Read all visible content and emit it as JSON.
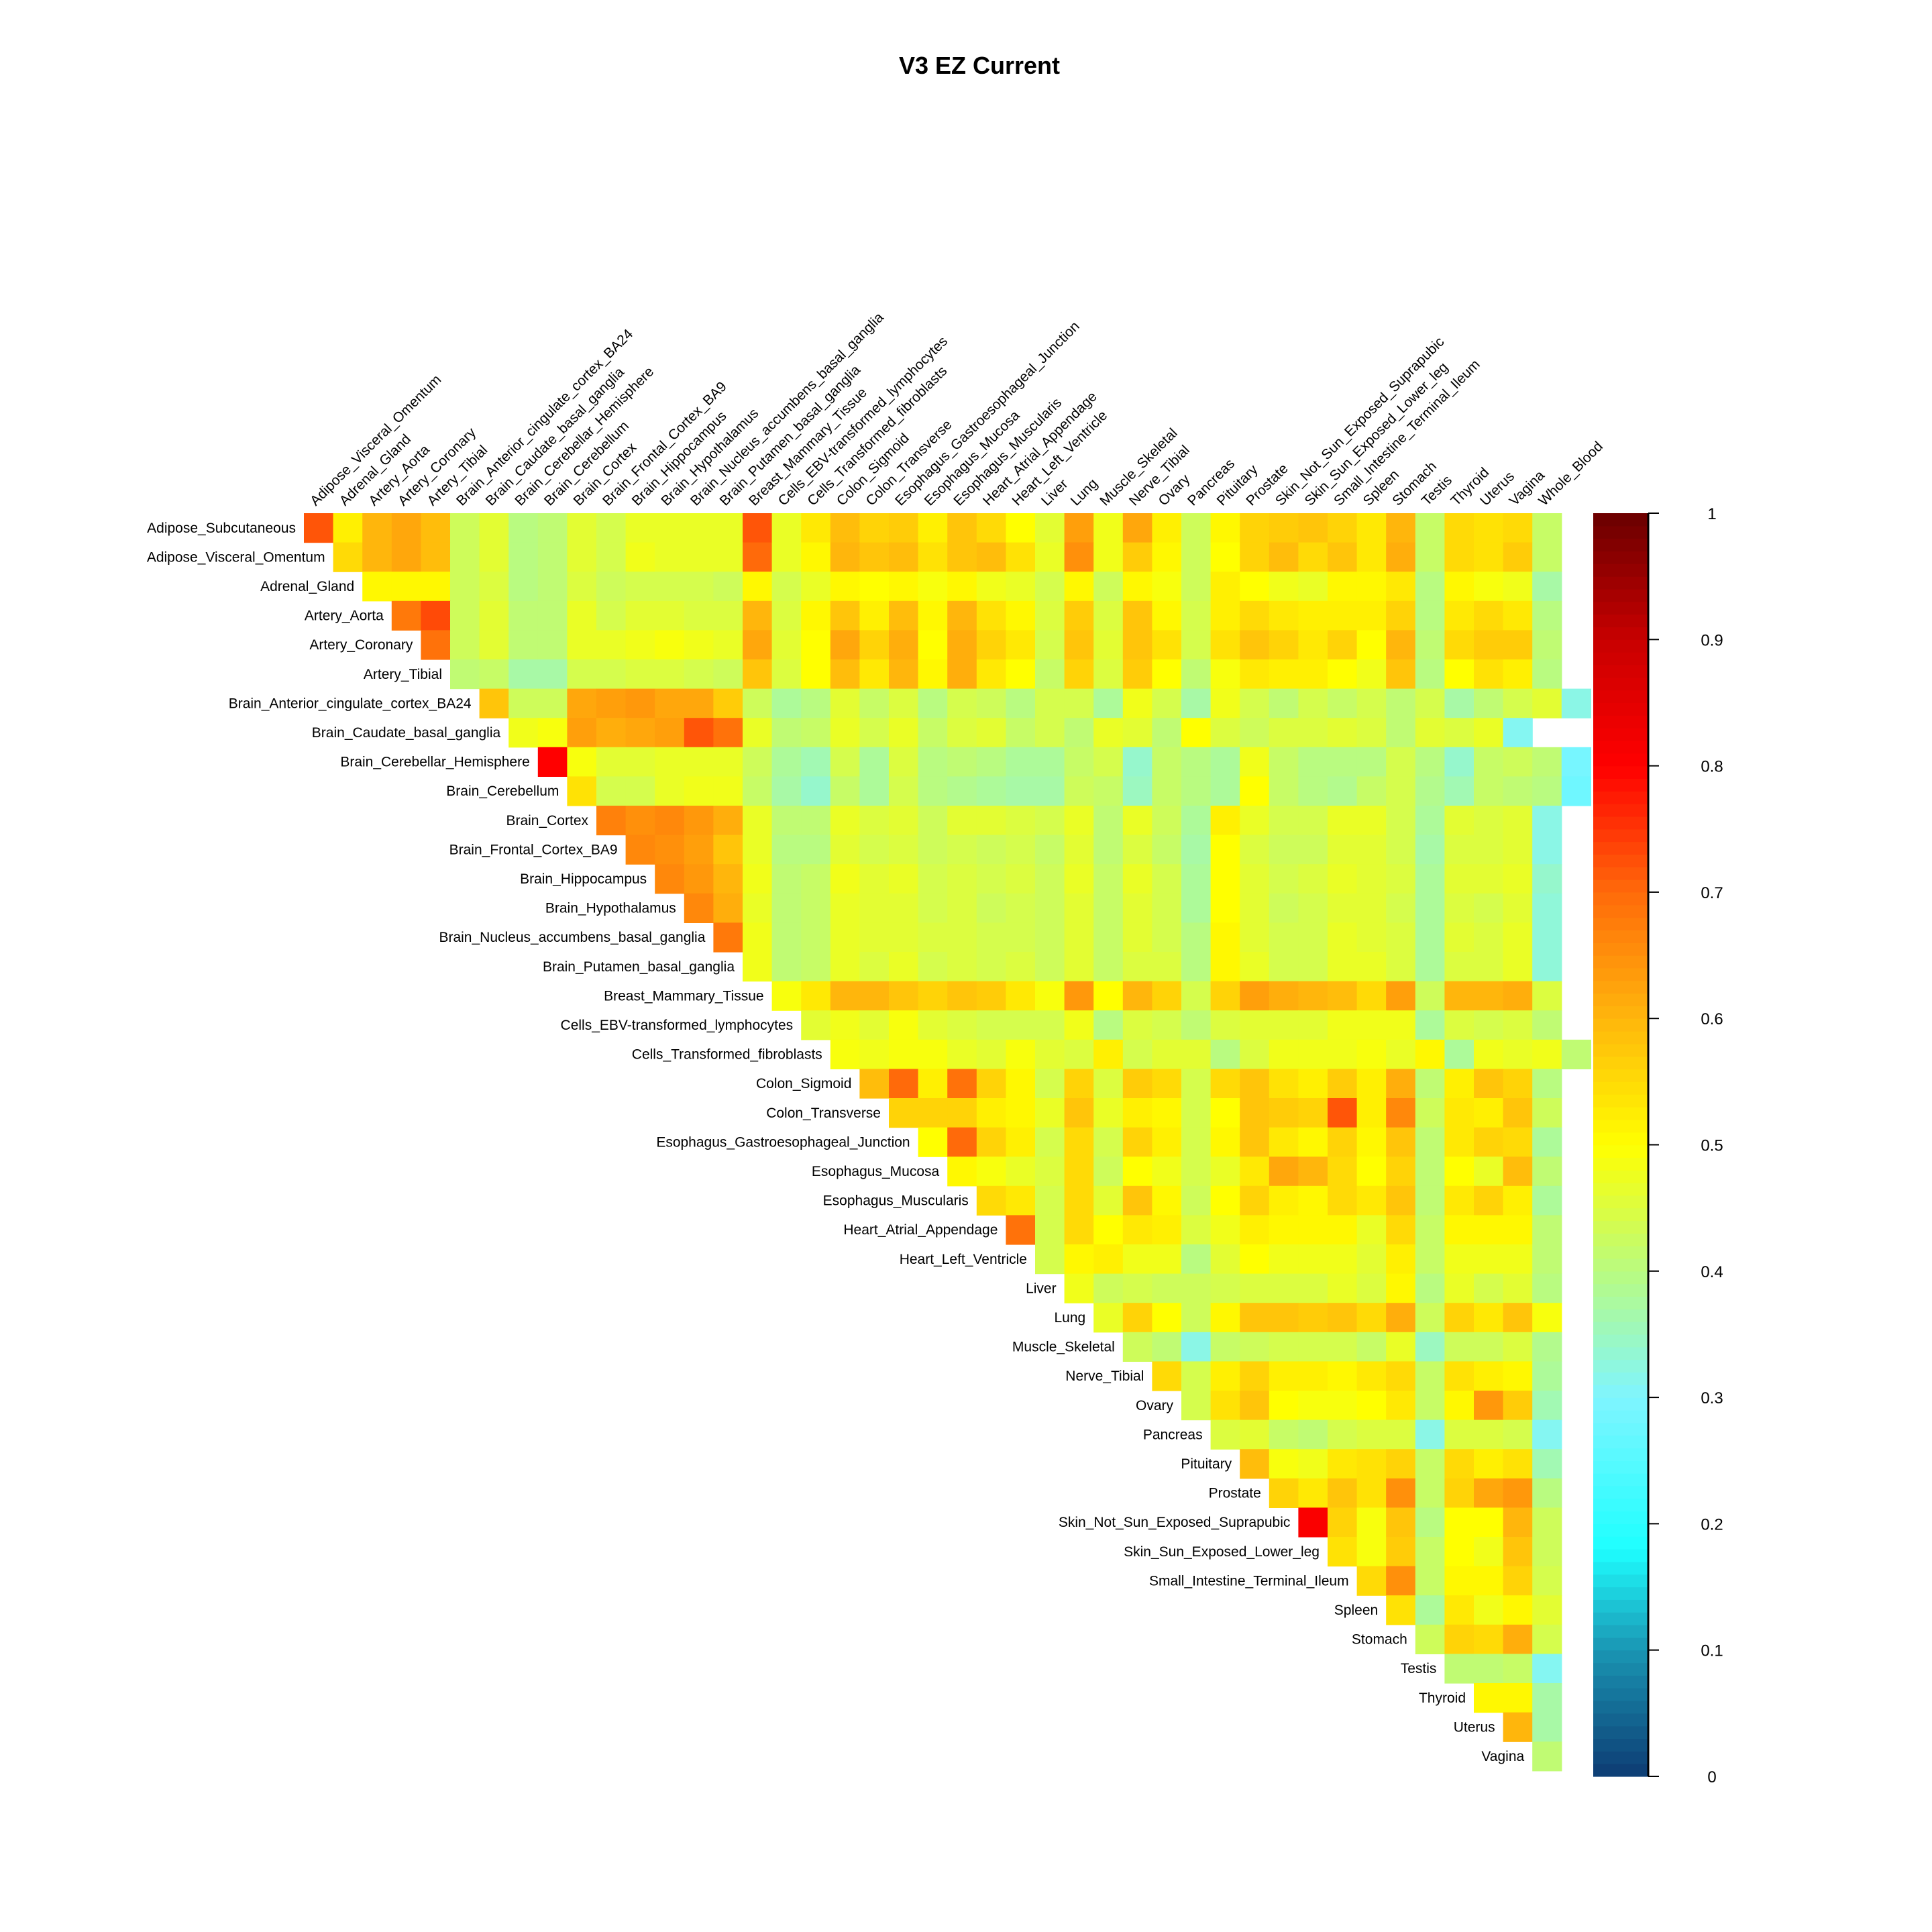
{
  "chart_data": {
    "type": "heatmap",
    "title": "V3 EZ Current",
    "xlabel": "",
    "ylabel": "",
    "layout": "upper-triangular",
    "row_labels": [
      "Adipose_Subcutaneous",
      "Adipose_Visceral_Omentum",
      "Adrenal_Gland",
      "Artery_Aorta",
      "Artery_Coronary",
      "Artery_Tibial",
      "Brain_Anterior_cingulate_cortex_BA24",
      "Brain_Caudate_basal_ganglia",
      "Brain_Cerebellar_Hemisphere",
      "Brain_Cerebellum",
      "Brain_Cortex",
      "Brain_Frontal_Cortex_BA9",
      "Brain_Hippocampus",
      "Brain_Hypothalamus",
      "Brain_Nucleus_accumbens_basal_ganglia",
      "Brain_Putamen_basal_ganglia",
      "Breast_Mammary_Tissue",
      "Cells_EBV-transformed_lymphocytes",
      "Cells_Transformed_fibroblasts",
      "Colon_Sigmoid",
      "Colon_Transverse",
      "Esophagus_Gastroesophageal_Junction",
      "Esophagus_Mucosa",
      "Esophagus_Muscularis",
      "Heart_Atrial_Appendage",
      "Heart_Left_Ventricle",
      "Liver",
      "Lung",
      "Muscle_Skeletal",
      "Nerve_Tibial",
      "Ovary",
      "Pancreas",
      "Pituitary",
      "Prostate",
      "Skin_Not_Sun_Exposed_Suprapubic",
      "Skin_Sun_Exposed_Lower_leg",
      "Small_Intestine_Terminal_Ileum",
      "Spleen",
      "Stomach",
      "Testis",
      "Thyroid",
      "Uterus",
      "Vagina"
    ],
    "col_labels": [
      "Adipose_Visceral_Omentum",
      "Adrenal_Gland",
      "Artery_Aorta",
      "Artery_Coronary",
      "Artery_Tibial",
      "Brain_Anterior_cingulate_cortex_BA24",
      "Brain_Caudate_basal_ganglia",
      "Brain_Cerebellar_Hemisphere",
      "Brain_Cerebellum",
      "Brain_Cortex",
      "Brain_Frontal_Cortex_BA9",
      "Brain_Hippocampus",
      "Brain_Hypothalamus",
      "Brain_Nucleus_accumbens_basal_ganglia",
      "Brain_Putamen_basal_ganglia",
      "Breast_Mammary_Tissue",
      "Cells_EBV-transformed_lymphocytes",
      "Cells_Transformed_fibroblasts",
      "Colon_Sigmoid",
      "Colon_Transverse",
      "Esophagus_Gastroesophageal_Junction",
      "Esophagus_Mucosa",
      "Esophagus_Muscularis",
      "Heart_Atrial_Appendage",
      "Heart_Left_Ventricle",
      "Liver",
      "Lung",
      "Muscle_Skeletal",
      "Nerve_Tibial",
      "Ovary",
      "Pancreas",
      "Pituitary",
      "Prostate",
      "Skin_Not_Sun_Exposed_Suprapubic",
      "Skin_Sun_Exposed_Lower_leg",
      "Small_Intestine_Terminal_Ileum",
      "Spleen",
      "Stomach",
      "Testis",
      "Thyroid",
      "Uterus",
      "Vagina",
      "Whole_Blood"
    ],
    "rows_upper": [
      [
        0.72,
        0.52,
        0.6,
        0.62,
        0.59,
        0.43,
        0.46,
        0.4,
        0.41,
        0.46,
        0.44,
        0.47,
        0.47,
        0.47,
        0.47,
        0.72,
        0.47,
        0.53,
        0.59,
        0.56,
        0.57,
        0.52,
        0.58,
        0.55,
        0.5,
        0.46,
        0.63,
        0.48,
        0.62,
        0.52,
        0.43,
        0.51,
        0.56,
        0.57,
        0.58,
        0.56,
        0.53,
        0.6,
        0.42,
        0.55,
        0.54,
        0.55,
        0.42
      ],
      [
        0.55,
        0.6,
        0.62,
        0.59,
        0.43,
        0.46,
        0.4,
        0.41,
        0.46,
        0.44,
        0.48,
        0.47,
        0.47,
        0.47,
        0.7,
        0.47,
        0.51,
        0.6,
        0.58,
        0.59,
        0.54,
        0.58,
        0.59,
        0.54,
        0.47,
        0.65,
        0.48,
        0.57,
        0.51,
        0.43,
        0.5,
        0.56,
        0.59,
        0.55,
        0.58,
        0.53,
        0.61,
        0.42,
        0.55,
        0.54,
        0.57,
        0.42
      ],
      [
        0.51,
        0.51,
        0.51,
        0.43,
        0.45,
        0.4,
        0.41,
        0.45,
        0.43,
        0.44,
        0.44,
        0.44,
        0.43,
        0.51,
        0.44,
        0.47,
        0.51,
        0.5,
        0.51,
        0.49,
        0.51,
        0.48,
        0.47,
        0.44,
        0.51,
        0.43,
        0.51,
        0.49,
        0.43,
        0.52,
        0.5,
        0.48,
        0.47,
        0.51,
        0.51,
        0.53,
        0.4,
        0.51,
        0.49,
        0.48,
        0.37
      ],
      [
        0.68,
        0.73,
        0.43,
        0.46,
        0.41,
        0.41,
        0.47,
        0.44,
        0.46,
        0.46,
        0.45,
        0.45,
        0.6,
        0.45,
        0.51,
        0.58,
        0.52,
        0.59,
        0.51,
        0.6,
        0.54,
        0.51,
        0.45,
        0.57,
        0.45,
        0.58,
        0.51,
        0.44,
        0.52,
        0.55,
        0.53,
        0.52,
        0.52,
        0.52,
        0.56,
        0.4,
        0.53,
        0.55,
        0.53,
        0.4
      ],
      [
        0.69,
        0.43,
        0.46,
        0.41,
        0.41,
        0.47,
        0.47,
        0.48,
        0.49,
        0.48,
        0.47,
        0.62,
        0.46,
        0.5,
        0.62,
        0.56,
        0.61,
        0.5,
        0.61,
        0.56,
        0.53,
        0.44,
        0.58,
        0.46,
        0.58,
        0.54,
        0.44,
        0.54,
        0.58,
        0.56,
        0.53,
        0.56,
        0.5,
        0.6,
        0.41,
        0.55,
        0.57,
        0.57,
        0.41
      ],
      [
        0.41,
        0.42,
        0.37,
        0.37,
        0.44,
        0.44,
        0.45,
        0.45,
        0.44,
        0.43,
        0.58,
        0.45,
        0.5,
        0.59,
        0.53,
        0.6,
        0.51,
        0.61,
        0.53,
        0.5,
        0.42,
        0.56,
        0.45,
        0.57,
        0.5,
        0.41,
        0.49,
        0.53,
        0.52,
        0.52,
        0.5,
        0.48,
        0.58,
        0.4,
        0.5,
        0.54,
        0.52,
        0.4
      ],
      [
        0.58,
        0.43,
        0.43,
        0.62,
        0.63,
        0.64,
        0.62,
        0.62,
        0.57,
        0.43,
        0.38,
        0.4,
        0.46,
        0.42,
        0.45,
        0.4,
        0.44,
        0.43,
        0.4,
        0.44,
        0.44,
        0.38,
        0.48,
        0.44,
        0.37,
        0.48,
        0.44,
        0.41,
        0.44,
        0.42,
        0.44,
        0.41,
        0.44,
        0.37,
        0.41,
        0.44,
        0.46,
        0.32
      ],
      [
        0.48,
        0.49,
        0.63,
        0.61,
        0.62,
        0.63,
        0.72,
        0.69,
        0.47,
        0.41,
        0.42,
        0.47,
        0.44,
        0.47,
        0.42,
        0.45,
        0.46,
        0.42,
        0.44,
        0.41,
        0.47,
        0.46,
        0.41,
        0.5,
        0.45,
        0.43,
        0.45,
        0.45,
        0.46,
        0.45,
        0.41,
        0.46,
        0.45,
        0.47,
        0.31
      ],
      [
        0.8,
        0.49,
        0.46,
        0.46,
        0.47,
        0.47,
        0.47,
        0.43,
        0.38,
        0.36,
        0.44,
        0.38,
        0.45,
        0.4,
        0.41,
        0.4,
        0.38,
        0.38,
        0.42,
        0.44,
        0.34,
        0.42,
        0.4,
        0.38,
        0.48,
        0.42,
        0.4,
        0.4,
        0.4,
        0.44,
        0.4,
        0.34,
        0.42,
        0.43,
        0.41,
        0.29
      ],
      [
        0.54,
        0.44,
        0.44,
        0.47,
        0.48,
        0.48,
        0.42,
        0.37,
        0.34,
        0.42,
        0.38,
        0.44,
        0.4,
        0.39,
        0.38,
        0.37,
        0.37,
        0.43,
        0.42,
        0.35,
        0.42,
        0.4,
        0.38,
        0.5,
        0.42,
        0.4,
        0.39,
        0.42,
        0.44,
        0.39,
        0.36,
        0.42,
        0.41,
        0.4,
        0.28
      ],
      [
        0.67,
        0.65,
        0.66,
        0.64,
        0.61,
        0.47,
        0.41,
        0.41,
        0.47,
        0.45,
        0.46,
        0.43,
        0.46,
        0.46,
        0.45,
        0.44,
        0.47,
        0.41,
        0.47,
        0.43,
        0.38,
        0.52,
        0.47,
        0.44,
        0.44,
        0.47,
        0.47,
        0.44,
        0.38,
        0.46,
        0.45,
        0.46,
        0.32
      ],
      [
        0.66,
        0.65,
        0.63,
        0.58,
        0.47,
        0.4,
        0.4,
        0.46,
        0.44,
        0.45,
        0.43,
        0.44,
        0.43,
        0.44,
        0.42,
        0.46,
        0.41,
        0.45,
        0.42,
        0.37,
        0.5,
        0.45,
        0.43,
        0.43,
        0.46,
        0.46,
        0.44,
        0.37,
        0.45,
        0.45,
        0.46,
        0.32
      ],
      [
        0.66,
        0.64,
        0.6,
        0.48,
        0.41,
        0.42,
        0.48,
        0.46,
        0.47,
        0.44,
        0.45,
        0.44,
        0.45,
        0.43,
        0.47,
        0.42,
        0.47,
        0.44,
        0.38,
        0.5,
        0.46,
        0.44,
        0.45,
        0.47,
        0.46,
        0.45,
        0.38,
        0.46,
        0.46,
        0.47,
        0.34
      ],
      [
        0.66,
        0.61,
        0.47,
        0.41,
        0.42,
        0.47,
        0.46,
        0.46,
        0.44,
        0.45,
        0.43,
        0.44,
        0.43,
        0.46,
        0.42,
        0.46,
        0.44,
        0.38,
        0.5,
        0.46,
        0.43,
        0.44,
        0.46,
        0.46,
        0.44,
        0.38,
        0.45,
        0.44,
        0.46,
        0.33
      ],
      [
        0.68,
        0.48,
        0.41,
        0.42,
        0.47,
        0.46,
        0.46,
        0.45,
        0.45,
        0.44,
        0.44,
        0.43,
        0.46,
        0.42,
        0.46,
        0.44,
        0.4,
        0.51,
        0.46,
        0.44,
        0.44,
        0.47,
        0.46,
        0.45,
        0.38,
        0.46,
        0.45,
        0.47,
        0.33
      ],
      [
        0.48,
        0.41,
        0.42,
        0.47,
        0.45,
        0.47,
        0.44,
        0.45,
        0.44,
        0.45,
        0.43,
        0.46,
        0.42,
        0.45,
        0.45,
        0.4,
        0.51,
        0.47,
        0.44,
        0.44,
        0.47,
        0.47,
        0.45,
        0.38,
        0.45,
        0.45,
        0.47,
        0.33
      ],
      [
        0.49,
        0.53,
        0.6,
        0.6,
        0.58,
        0.56,
        0.58,
        0.57,
        0.53,
        0.49,
        0.64,
        0.5,
        0.6,
        0.56,
        0.44,
        0.56,
        0.63,
        0.61,
        0.6,
        0.59,
        0.55,
        0.63,
        0.43,
        0.6,
        0.6,
        0.61,
        0.45
      ],
      [
        0.46,
        0.48,
        0.46,
        0.49,
        0.46,
        0.45,
        0.44,
        0.44,
        0.44,
        0.48,
        0.4,
        0.45,
        0.44,
        0.41,
        0.45,
        0.46,
        0.46,
        0.46,
        0.48,
        0.48,
        0.48,
        0.38,
        0.45,
        0.44,
        0.45,
        0.41
      ],
      [
        0.49,
        0.48,
        0.49,
        0.49,
        0.47,
        0.46,
        0.49,
        0.46,
        0.45,
        0.52,
        0.44,
        0.46,
        0.46,
        0.4,
        0.45,
        0.48,
        0.48,
        0.48,
        0.49,
        0.47,
        0.51,
        0.38,
        0.48,
        0.47,
        0.48,
        0.41
      ],
      [
        0.59,
        0.7,
        0.52,
        0.69,
        0.56,
        0.51,
        0.44,
        0.56,
        0.45,
        0.57,
        0.55,
        0.44,
        0.55,
        0.58,
        0.54,
        0.52,
        0.57,
        0.52,
        0.61,
        0.41,
        0.52,
        0.58,
        0.56,
        0.4
      ],
      [
        0.56,
        0.56,
        0.56,
        0.52,
        0.51,
        0.47,
        0.58,
        0.47,
        0.52,
        0.51,
        0.44,
        0.5,
        0.58,
        0.57,
        0.56,
        0.72,
        0.52,
        0.66,
        0.43,
        0.53,
        0.52,
        0.58,
        0.43
      ],
      [
        0.5,
        0.7,
        0.56,
        0.52,
        0.44,
        0.55,
        0.44,
        0.56,
        0.52,
        0.44,
        0.51,
        0.58,
        0.53,
        0.51,
        0.56,
        0.51,
        0.58,
        0.41,
        0.53,
        0.56,
        0.55,
        0.38
      ],
      [
        0.51,
        0.49,
        0.47,
        0.45,
        0.55,
        0.43,
        0.5,
        0.48,
        0.44,
        0.47,
        0.53,
        0.62,
        0.6,
        0.55,
        0.5,
        0.56,
        0.41,
        0.5,
        0.47,
        0.59,
        0.41
      ],
      [
        0.55,
        0.53,
        0.44,
        0.55,
        0.46,
        0.58,
        0.51,
        0.43,
        0.5,
        0.56,
        0.52,
        0.51,
        0.55,
        0.53,
        0.58,
        0.41,
        0.53,
        0.56,
        0.52,
        0.38
      ],
      [
        0.69,
        0.44,
        0.55,
        0.5,
        0.53,
        0.52,
        0.45,
        0.48,
        0.52,
        0.51,
        0.51,
        0.51,
        0.47,
        0.55,
        0.42,
        0.51,
        0.51,
        0.51,
        0.41
      ],
      [
        0.44,
        0.51,
        0.52,
        0.48,
        0.48,
        0.4,
        0.46,
        0.5,
        0.48,
        0.48,
        0.48,
        0.46,
        0.52,
        0.42,
        0.48,
        0.48,
        0.48,
        0.41
      ],
      [
        0.48,
        0.43,
        0.44,
        0.43,
        0.43,
        0.44,
        0.45,
        0.45,
        0.45,
        0.47,
        0.45,
        0.51,
        0.4,
        0.47,
        0.44,
        0.46,
        0.4
      ],
      [
        0.47,
        0.56,
        0.5,
        0.43,
        0.51,
        0.58,
        0.58,
        0.57,
        0.58,
        0.55,
        0.61,
        0.43,
        0.56,
        0.53,
        0.58,
        0.49
      ],
      [
        0.43,
        0.41,
        0.32,
        0.42,
        0.43,
        0.44,
        0.44,
        0.44,
        0.42,
        0.47,
        0.35,
        0.43,
        0.43,
        0.45,
        0.39
      ],
      [
        0.55,
        0.44,
        0.52,
        0.56,
        0.52,
        0.52,
        0.51,
        0.53,
        0.55,
        0.42,
        0.54,
        0.52,
        0.51,
        0.38
      ],
      [
        0.44,
        0.54,
        0.58,
        0.5,
        0.49,
        0.49,
        0.5,
        0.53,
        0.42,
        0.51,
        0.64,
        0.57,
        0.36
      ],
      [
        0.45,
        0.46,
        0.42,
        0.41,
        0.44,
        0.45,
        0.45,
        0.32,
        0.45,
        0.45,
        0.44,
        0.31
      ],
      [
        0.59,
        0.49,
        0.48,
        0.53,
        0.54,
        0.56,
        0.42,
        0.55,
        0.52,
        0.54,
        0.36
      ],
      [
        0.56,
        0.53,
        0.58,
        0.54,
        0.65,
        0.42,
        0.56,
        0.62,
        0.64,
        0.4
      ],
      [
        0.81,
        0.56,
        0.49,
        0.58,
        0.4,
        0.5,
        0.5,
        0.6,
        0.43
      ],
      [
        0.54,
        0.49,
        0.57,
        0.42,
        0.5,
        0.48,
        0.58,
        0.43
      ],
      [
        0.55,
        0.65,
        0.42,
        0.51,
        0.51,
        0.56,
        0.44
      ],
      [
        0.54,
        0.38,
        0.53,
        0.48,
        0.51,
        0.46
      ],
      [
        0.43,
        0.56,
        0.55,
        0.61,
        0.44
      ],
      [
        0.41,
        0.41,
        0.42,
        0.31
      ],
      [
        0.51,
        0.51,
        0.37
      ],
      [
        0.6,
        0.37
      ],
      [
        0.41
      ]
    ],
    "colorbar": {
      "range": [
        0,
        1
      ],
      "ticks": [
        "0",
        "0.1",
        "0.2",
        "0.3",
        "0.4",
        "0.5",
        "0.6",
        "0.7",
        "0.8",
        "0.9",
        "1"
      ],
      "stops": [
        {
          "v": 0.0,
          "c": "#0d3b73"
        },
        {
          "v": 0.1,
          "c": "#1a95b3"
        },
        {
          "v": 0.18,
          "c": "#1effff"
        },
        {
          "v": 0.3,
          "c": "#7ff5ff"
        },
        {
          "v": 0.4,
          "c": "#b9fb80"
        },
        {
          "v": 0.5,
          "c": "#ffff00"
        },
        {
          "v": 0.6,
          "c": "#ffb60c"
        },
        {
          "v": 0.7,
          "c": "#ff6a0a"
        },
        {
          "v": 0.8,
          "c": "#ff0000"
        },
        {
          "v": 0.9,
          "c": "#c80000"
        },
        {
          "v": 1.0,
          "c": "#6a0000"
        }
      ]
    }
  }
}
